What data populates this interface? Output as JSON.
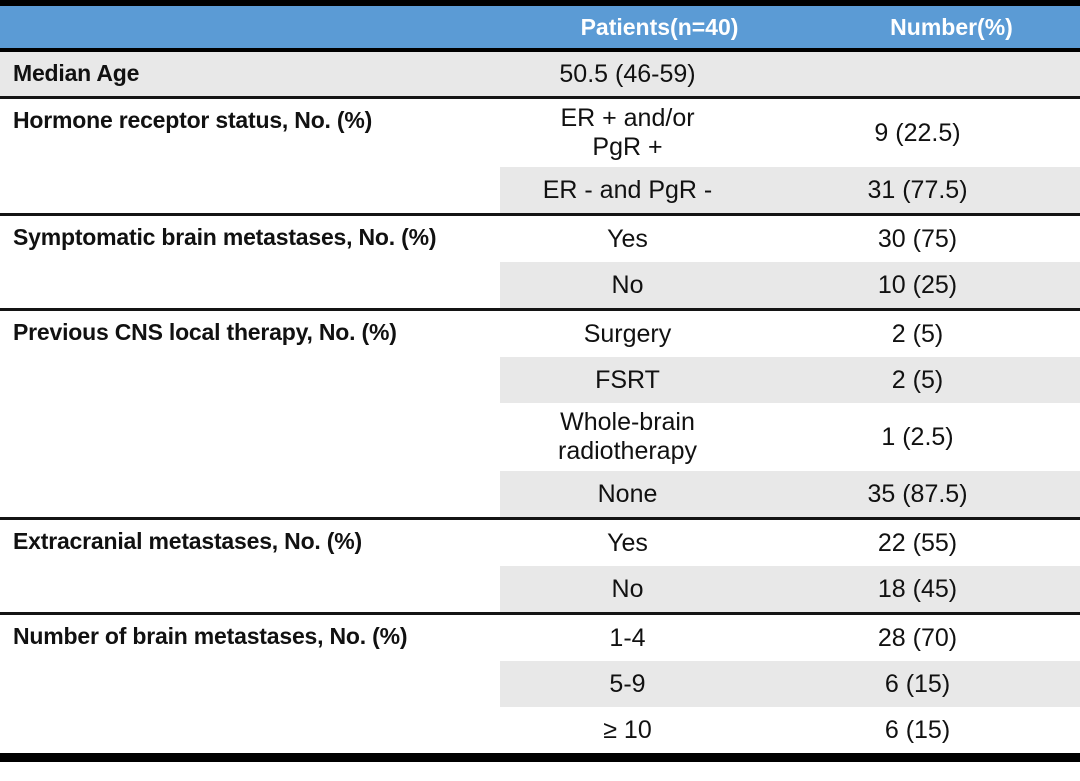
{
  "colors": {
    "header_bg": "#5B9BD5",
    "header_text": "#FFFFFF",
    "row_shade": "#E8E8E8",
    "rule": "#141414"
  },
  "table": {
    "columns": [
      "",
      "Patients(n=40)",
      "Number(%)"
    ],
    "sections": [
      {
        "label": "Median Age",
        "shade_full_row": true,
        "rows": [
          {
            "value_lines": [
              "50.5 (46-59)"
            ],
            "number": "",
            "shaded": false
          }
        ]
      },
      {
        "label": "Hormone receptor status, No. (%)",
        "shade_full_row": false,
        "rows": [
          {
            "value_lines": [
              "ER + and/or",
              "PgR +"
            ],
            "number": "9 (22.5)",
            "shaded": false
          },
          {
            "value_lines": [
              "ER - and PgR -"
            ],
            "number": "31 (77.5)",
            "shaded": true
          }
        ]
      },
      {
        "label": "Symptomatic brain metastases, No. (%)",
        "shade_full_row": false,
        "rows": [
          {
            "value_lines": [
              "Yes"
            ],
            "number": "30 (75)",
            "shaded": false
          },
          {
            "value_lines": [
              "No"
            ],
            "number": "10 (25)",
            "shaded": true
          }
        ]
      },
      {
        "label": "Previous CNS local therapy, No. (%)",
        "shade_full_row": false,
        "rows": [
          {
            "value_lines": [
              "Surgery"
            ],
            "number": "2 (5)",
            "shaded": false
          },
          {
            "value_lines": [
              "FSRT"
            ],
            "number": "2 (5)",
            "shaded": true
          },
          {
            "value_lines": [
              "Whole-brain",
              "radiotherapy"
            ],
            "number": "1 (2.5)",
            "shaded": false
          },
          {
            "value_lines": [
              "None"
            ],
            "number": "35 (87.5)",
            "shaded": true
          }
        ]
      },
      {
        "label": "Extracranial metastases, No. (%)",
        "shade_full_row": false,
        "rows": [
          {
            "value_lines": [
              "Yes"
            ],
            "number": "22 (55)",
            "shaded": false
          },
          {
            "value_lines": [
              "No"
            ],
            "number": "18 (45)",
            "shaded": true
          }
        ]
      },
      {
        "label": "Number of brain metastases, No. (%)",
        "shade_full_row": false,
        "rows": [
          {
            "value_lines": [
              "1-4"
            ],
            "number": "28 (70)",
            "shaded": false
          },
          {
            "value_lines": [
              "5-9"
            ],
            "number": "6 (15)",
            "shaded": true
          },
          {
            "value_lines": [
              "≥ 10"
            ],
            "number": "6 (15)",
            "shaded": false
          }
        ]
      }
    ]
  }
}
